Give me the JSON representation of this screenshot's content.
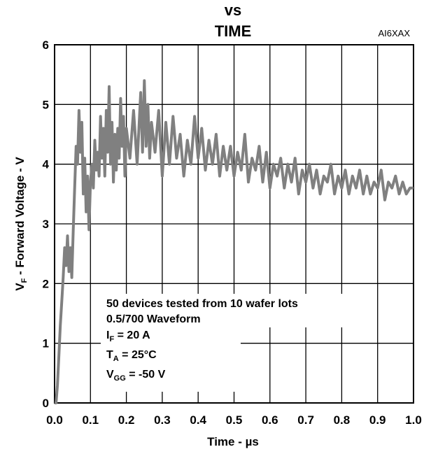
{
  "chart_data": {
    "type": "line",
    "title_line1": "vs",
    "title_line2": "TIME",
    "figure_code": "AI6XAX",
    "xlabel": "Time - µs",
    "ylabel_main": "V",
    "ylabel_sub": "F",
    "ylabel_rest": " - Forward Voltage - V",
    "xlim": [
      0,
      1.0
    ],
    "ylim": [
      0,
      6
    ],
    "xticks": [
      "0.0",
      "0.1",
      "0.2",
      "0.3",
      "0.4",
      "0.5",
      "0.6",
      "0.7",
      "0.8",
      "0.9",
      "1.0"
    ],
    "yticks": [
      "0",
      "1",
      "2",
      "3",
      "4",
      "5",
      "6"
    ],
    "grid": true,
    "series_color": "#808080",
    "annotation": {
      "line1": "50 devices tested from 10 wafer lots",
      "line2": "0.5/700 Waveform",
      "line3_main": "I",
      "line3_sub": "F",
      "line3_rest": " = 20 A",
      "line4_main": "T",
      "line4_sub": "A",
      "line4_rest": " = 25°C",
      "line5_main": "V",
      "line5_sub": "GG",
      "line5_rest": " = -50 V"
    },
    "series": [
      {
        "x": [
          0.0,
          0.004,
          0.008,
          0.012,
          0.016,
          0.02,
          0.024,
          0.028,
          0.032,
          0.036,
          0.04,
          0.044,
          0.048,
          0.052,
          0.056,
          0.06,
          0.064,
          0.068,
          0.072,
          0.076,
          0.08,
          0.084,
          0.088,
          0.092,
          0.096,
          0.1,
          0.104,
          0.108,
          0.112,
          0.116,
          0.12,
          0.124,
          0.128,
          0.132,
          0.136,
          0.14,
          0.144,
          0.148,
          0.152,
          0.156,
          0.16,
          0.164,
          0.168,
          0.172,
          0.176,
          0.18,
          0.184,
          0.188,
          0.192,
          0.196,
          0.2,
          0.21,
          0.22,
          0.23,
          0.24,
          0.245,
          0.25,
          0.255,
          0.26,
          0.265,
          0.27,
          0.28,
          0.29,
          0.3,
          0.31,
          0.32,
          0.33,
          0.34,
          0.35,
          0.36,
          0.37,
          0.38,
          0.39,
          0.4,
          0.41,
          0.42,
          0.43,
          0.44,
          0.45,
          0.46,
          0.47,
          0.48,
          0.49,
          0.5,
          0.51,
          0.52,
          0.53,
          0.54,
          0.55,
          0.56,
          0.57,
          0.58,
          0.59,
          0.6,
          0.61,
          0.62,
          0.63,
          0.64,
          0.65,
          0.66,
          0.67,
          0.68,
          0.69,
          0.7,
          0.71,
          0.72,
          0.73,
          0.74,
          0.75,
          0.76,
          0.77,
          0.78,
          0.79,
          0.8,
          0.81,
          0.82,
          0.83,
          0.84,
          0.85,
          0.86,
          0.87,
          0.88,
          0.89,
          0.9,
          0.91,
          0.92,
          0.93,
          0.94,
          0.95,
          0.96,
          0.97,
          0.98,
          0.99,
          1.0
        ],
        "y": [
          0.0,
          0.0,
          0.3,
          0.8,
          1.3,
          1.7,
          2.1,
          2.6,
          2.3,
          2.8,
          2.2,
          2.6,
          2.1,
          2.9,
          3.6,
          4.3,
          4.0,
          4.9,
          4.2,
          4.7,
          3.5,
          4.1,
          3.2,
          3.8,
          2.9,
          3.7,
          4.0,
          3.6,
          4.4,
          3.9,
          4.2,
          3.8,
          4.8,
          4.1,
          4.6,
          3.8,
          4.9,
          4.2,
          5.3,
          4.0,
          4.7,
          3.7,
          4.5,
          3.9,
          4.6,
          4.1,
          5.1,
          4.3,
          4.8,
          3.8,
          4.6,
          4.1,
          4.9,
          4.0,
          5.2,
          4.2,
          5.4,
          4.3,
          5.0,
          4.1,
          4.7,
          4.2,
          4.9,
          3.8,
          4.7,
          4.0,
          4.8,
          4.1,
          4.5,
          3.8,
          4.4,
          4.0,
          4.8,
          4.1,
          4.6,
          3.9,
          4.4,
          4.0,
          4.5,
          3.8,
          4.3,
          3.9,
          4.3,
          3.8,
          4.2,
          3.9,
          4.5,
          3.7,
          4.1,
          3.9,
          4.3,
          3.7,
          4.2,
          3.6,
          4.0,
          3.8,
          4.1,
          3.6,
          4.0,
          3.7,
          4.1,
          3.5,
          3.9,
          3.7,
          4.0,
          3.6,
          3.9,
          3.5,
          3.8,
          3.7,
          4.0,
          3.5,
          3.8,
          3.6,
          3.9,
          3.5,
          3.8,
          3.6,
          3.9,
          3.5,
          3.8,
          3.5,
          3.7,
          3.6,
          3.9,
          3.4,
          3.7,
          3.6,
          3.8,
          3.5,
          3.7,
          3.5,
          3.6,
          3.6
        ]
      }
    ]
  }
}
